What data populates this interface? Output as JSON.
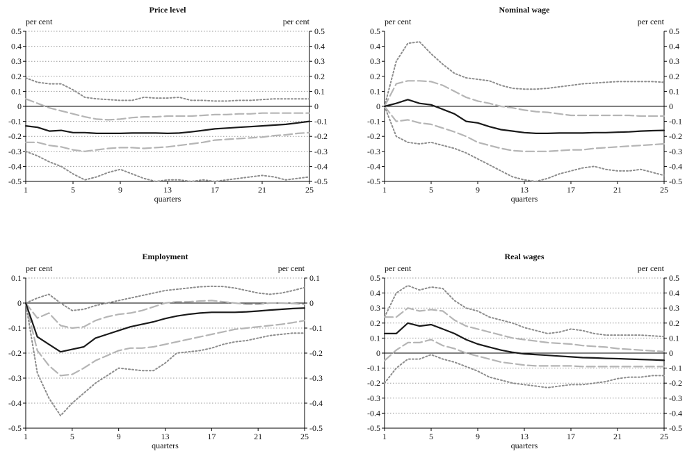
{
  "chart_data": [
    {
      "type": "line",
      "title": "Price level",
      "ylabel_left": "per cent",
      "ylabel_right": "per cent",
      "xlabel": "quarters",
      "xlim": [
        1,
        25
      ],
      "ylim": [
        -0.5,
        0.5
      ],
      "xticks": [
        1,
        5,
        9,
        13,
        17,
        21,
        25
      ],
      "yticks": [
        0.5,
        0.4,
        0.3,
        0.2,
        0.1,
        0,
        -0.1,
        -0.2,
        -0.3,
        -0.4,
        -0.5
      ],
      "ytick_labels": [
        "0.5",
        "0.4",
        "0.3",
        "0.2",
        "0.1",
        "0",
        "-0.1",
        "-0.2",
        "-0.3",
        "-0.4",
        "-0.5"
      ],
      "grid": true,
      "x": [
        1,
        2,
        3,
        4,
        5,
        6,
        7,
        8,
        9,
        10,
        11,
        12,
        13,
        14,
        15,
        16,
        17,
        18,
        19,
        20,
        21,
        22,
        23,
        24,
        25
      ],
      "series": [
        {
          "style": "outer-upper",
          "values": [
            0.19,
            0.16,
            0.15,
            0.15,
            0.11,
            0.06,
            0.05,
            0.045,
            0.04,
            0.04,
            0.06,
            0.055,
            0.055,
            0.06,
            0.04,
            0.04,
            0.035,
            0.035,
            0.04,
            0.04,
            0.045,
            0.05,
            0.05,
            0.05,
            0.05
          ]
        },
        {
          "style": "inner-upper",
          "values": [
            0.05,
            0.02,
            -0.01,
            -0.03,
            -0.05,
            -0.07,
            -0.085,
            -0.09,
            -0.085,
            -0.075,
            -0.07,
            -0.07,
            -0.065,
            -0.065,
            -0.065,
            -0.06,
            -0.055,
            -0.055,
            -0.05,
            -0.05,
            -0.045,
            -0.045,
            -0.045,
            -0.045,
            -0.045
          ]
        },
        {
          "style": "median",
          "values": [
            -0.13,
            -0.14,
            -0.165,
            -0.16,
            -0.175,
            -0.175,
            -0.18,
            -0.18,
            -0.18,
            -0.178,
            -0.178,
            -0.178,
            -0.18,
            -0.178,
            -0.17,
            -0.16,
            -0.15,
            -0.145,
            -0.14,
            -0.135,
            -0.13,
            -0.125,
            -0.12,
            -0.11,
            -0.1
          ]
        },
        {
          "style": "inner-lower",
          "values": [
            -0.24,
            -0.24,
            -0.26,
            -0.27,
            -0.29,
            -0.3,
            -0.29,
            -0.28,
            -0.275,
            -0.275,
            -0.28,
            -0.275,
            -0.27,
            -0.26,
            -0.25,
            -0.24,
            -0.225,
            -0.22,
            -0.215,
            -0.21,
            -0.205,
            -0.195,
            -0.19,
            -0.18,
            -0.175
          ]
        },
        {
          "style": "outer-lower",
          "values": [
            -0.3,
            -0.33,
            -0.37,
            -0.4,
            -0.45,
            -0.49,
            -0.47,
            -0.44,
            -0.42,
            -0.45,
            -0.48,
            -0.5,
            -0.49,
            -0.49,
            -0.5,
            -0.49,
            -0.5,
            -0.49,
            -0.48,
            -0.47,
            -0.46,
            -0.47,
            -0.49,
            -0.48,
            -0.47
          ]
        }
      ]
    },
    {
      "type": "line",
      "title": "Nominal wage",
      "ylabel_left": "per cent",
      "ylabel_right": "per cent",
      "xlabel": "quarters",
      "xlim": [
        1,
        25
      ],
      "ylim": [
        -0.5,
        0.5
      ],
      "xticks": [
        1,
        5,
        9,
        13,
        17,
        21,
        25
      ],
      "yticks": [
        0.5,
        0.4,
        0.3,
        0.2,
        0.1,
        0,
        -0.1,
        -0.2,
        -0.3,
        -0.4,
        -0.5
      ],
      "ytick_labels": [
        "0.5",
        "0.4",
        "0.3",
        "0.2",
        "0.1",
        "0",
        "-0.1",
        "-0.2",
        "-0.3",
        "-0.4",
        "-0.5"
      ],
      "grid": false,
      "x": [
        1,
        2,
        3,
        4,
        5,
        6,
        7,
        8,
        9,
        10,
        11,
        12,
        13,
        14,
        15,
        16,
        17,
        18,
        19,
        20,
        21,
        22,
        23,
        24,
        25
      ],
      "series": [
        {
          "style": "outer-upper",
          "values": [
            0,
            0.3,
            0.42,
            0.43,
            0.35,
            0.28,
            0.22,
            0.19,
            0.18,
            0.17,
            0.14,
            0.12,
            0.115,
            0.115,
            0.12,
            0.13,
            0.14,
            0.15,
            0.155,
            0.16,
            0.165,
            0.165,
            0.165,
            0.165,
            0.16
          ]
        },
        {
          "style": "inner-upper",
          "values": [
            0,
            0.15,
            0.17,
            0.17,
            0.165,
            0.14,
            0.1,
            0.06,
            0.035,
            0.02,
            0,
            -0.01,
            -0.025,
            -0.035,
            -0.04,
            -0.05,
            -0.06,
            -0.06,
            -0.06,
            -0.06,
            -0.06,
            -0.06,
            -0.065,
            -0.065,
            -0.065
          ]
        },
        {
          "style": "median",
          "values": [
            0,
            0.02,
            0.045,
            0.02,
            0.01,
            -0.02,
            -0.05,
            -0.1,
            -0.11,
            -0.135,
            -0.155,
            -0.165,
            -0.175,
            -0.18,
            -0.18,
            -0.178,
            -0.178,
            -0.178,
            -0.175,
            -0.175,
            -0.172,
            -0.17,
            -0.165,
            -0.162,
            -0.16
          ]
        },
        {
          "style": "inner-lower",
          "values": [
            0,
            -0.1,
            -0.09,
            -0.11,
            -0.12,
            -0.145,
            -0.17,
            -0.2,
            -0.24,
            -0.26,
            -0.28,
            -0.295,
            -0.3,
            -0.3,
            -0.3,
            -0.295,
            -0.29,
            -0.29,
            -0.28,
            -0.275,
            -0.27,
            -0.265,
            -0.26,
            -0.255,
            -0.25
          ]
        },
        {
          "style": "outer-lower",
          "values": [
            0,
            -0.2,
            -0.24,
            -0.25,
            -0.24,
            -0.26,
            -0.28,
            -0.31,
            -0.35,
            -0.39,
            -0.43,
            -0.47,
            -0.49,
            -0.5,
            -0.48,
            -0.45,
            -0.43,
            -0.41,
            -0.4,
            -0.42,
            -0.43,
            -0.43,
            -0.42,
            -0.44,
            -0.46
          ]
        }
      ]
    },
    {
      "type": "line",
      "title": "Employment",
      "ylabel_left": "per cent",
      "ylabel_right": "per cent",
      "xlabel": "quarters",
      "xlim": [
        1,
        25
      ],
      "ylim": [
        -0.5,
        0.1
      ],
      "xticks": [
        1,
        5,
        9,
        13,
        17,
        21,
        25
      ],
      "yticks": [
        0.1,
        0,
        -0.1,
        -0.2,
        -0.3,
        -0.4,
        -0.5
      ],
      "ytick_labels": [
        "0.1",
        "0",
        "-0.1",
        "-0.2",
        "-0.3",
        "-0.4",
        "-0.5"
      ],
      "grid": true,
      "x": [
        1,
        2,
        3,
        4,
        5,
        6,
        7,
        8,
        9,
        10,
        11,
        12,
        13,
        14,
        15,
        16,
        17,
        18,
        19,
        20,
        21,
        22,
        23,
        24,
        25
      ],
      "series": [
        {
          "style": "outer-upper",
          "values": [
            0,
            0.02,
            0.035,
            0,
            -0.03,
            -0.025,
            -0.01,
            0,
            0.01,
            0.02,
            0.03,
            0.04,
            0.05,
            0.055,
            0.06,
            0.065,
            0.067,
            0.066,
            0.06,
            0.05,
            0.04,
            0.035,
            0.04,
            0.05,
            0.062
          ]
        },
        {
          "style": "inner-upper",
          "values": [
            0,
            -0.06,
            -0.04,
            -0.09,
            -0.1,
            -0.095,
            -0.07,
            -0.055,
            -0.045,
            -0.04,
            -0.03,
            -0.015,
            0,
            0.005,
            0.005,
            0.008,
            0.01,
            0.005,
            0,
            -0.005,
            -0.005,
            0,
            0,
            -0.002,
            -0.005
          ]
        },
        {
          "style": "median",
          "values": [
            0,
            -0.135,
            -0.165,
            -0.195,
            -0.185,
            -0.175,
            -0.14,
            -0.125,
            -0.11,
            -0.095,
            -0.085,
            -0.075,
            -0.062,
            -0.052,
            -0.045,
            -0.04,
            -0.037,
            -0.037,
            -0.037,
            -0.035,
            -0.032,
            -0.028,
            -0.025,
            -0.022,
            -0.02
          ]
        },
        {
          "style": "inner-lower",
          "values": [
            0,
            -0.19,
            -0.25,
            -0.29,
            -0.285,
            -0.26,
            -0.23,
            -0.21,
            -0.19,
            -0.18,
            -0.18,
            -0.175,
            -0.165,
            -0.155,
            -0.145,
            -0.135,
            -0.125,
            -0.115,
            -0.105,
            -0.1,
            -0.095,
            -0.09,
            -0.085,
            -0.078,
            -0.07
          ]
        },
        {
          "style": "outer-lower",
          "values": [
            0,
            -0.28,
            -0.38,
            -0.45,
            -0.4,
            -0.36,
            -0.32,
            -0.29,
            -0.26,
            -0.265,
            -0.27,
            -0.27,
            -0.24,
            -0.2,
            -0.195,
            -0.19,
            -0.18,
            -0.165,
            -0.155,
            -0.15,
            -0.14,
            -0.13,
            -0.125,
            -0.12,
            -0.12
          ]
        }
      ]
    },
    {
      "type": "line",
      "title": "Real wages",
      "ylabel_left": "per cent",
      "ylabel_right": "per cent",
      "xlabel": "quarters",
      "xlim": [
        1,
        25
      ],
      "ylim": [
        -0.5,
        0.5
      ],
      "xticks": [
        1,
        5,
        9,
        13,
        17,
        21,
        25
      ],
      "yticks": [
        0.5,
        0.4,
        0.3,
        0.2,
        0.1,
        0,
        -0.1,
        -0.2,
        -0.3,
        -0.4,
        -0.5
      ],
      "ytick_labels": [
        "0.5",
        "0.4",
        "0.3",
        "0.2",
        "0.1",
        "0",
        "-0.1",
        "-0.2",
        "-0.3",
        "-0.4",
        "-0.5"
      ],
      "grid": true,
      "x": [
        1,
        2,
        3,
        4,
        5,
        6,
        7,
        8,
        9,
        10,
        11,
        12,
        13,
        14,
        15,
        16,
        17,
        18,
        19,
        20,
        21,
        22,
        23,
        24,
        25
      ],
      "series": [
        {
          "style": "outer-upper",
          "values": [
            0.24,
            0.4,
            0.45,
            0.42,
            0.44,
            0.43,
            0.35,
            0.3,
            0.28,
            0.24,
            0.22,
            0.2,
            0.17,
            0.15,
            0.13,
            0.14,
            0.16,
            0.15,
            0.13,
            0.12,
            0.12,
            0.12,
            0.12,
            0.115,
            0.11
          ]
        },
        {
          "style": "inner-upper",
          "values": [
            0.24,
            0.24,
            0.3,
            0.28,
            0.29,
            0.28,
            0.22,
            0.18,
            0.16,
            0.14,
            0.12,
            0.1,
            0.09,
            0.08,
            0.07,
            0.065,
            0.06,
            0.05,
            0.045,
            0.04,
            0.03,
            0.025,
            0.02,
            0.015,
            0.01
          ]
        },
        {
          "style": "median",
          "values": [
            0.13,
            0.13,
            0.2,
            0.18,
            0.19,
            0.16,
            0.13,
            0.09,
            0.06,
            0.04,
            0.02,
            0.005,
            -0.005,
            -0.01,
            -0.015,
            -0.02,
            -0.025,
            -0.03,
            -0.032,
            -0.035,
            -0.037,
            -0.04,
            -0.042,
            -0.045,
            -0.048
          ]
        },
        {
          "style": "inner-lower",
          "values": [
            -0.05,
            0.02,
            0.07,
            0.07,
            0.09,
            0.05,
            0.03,
            0,
            -0.02,
            -0.04,
            -0.06,
            -0.07,
            -0.08,
            -0.085,
            -0.085,
            -0.085,
            -0.085,
            -0.09,
            -0.09,
            -0.09,
            -0.09,
            -0.09,
            -0.09,
            -0.09,
            -0.09
          ]
        },
        {
          "style": "outer-lower",
          "values": [
            -0.2,
            -0.1,
            -0.04,
            -0.04,
            -0.01,
            -0.04,
            -0.06,
            -0.09,
            -0.12,
            -0.16,
            -0.18,
            -0.2,
            -0.21,
            -0.22,
            -0.23,
            -0.22,
            -0.21,
            -0.21,
            -0.2,
            -0.19,
            -0.17,
            -0.16,
            -0.16,
            -0.15,
            -0.15
          ]
        }
      ]
    }
  ],
  "styles": {
    "median": {
      "color": "#1a1a1a",
      "dash": "solid",
      "width": 2.2
    },
    "inner": {
      "color": "#b5b5b5",
      "dash": "long-dash",
      "width": 2.2
    },
    "outer": {
      "color": "#8c8c8c",
      "dash": "dotted",
      "width": 2
    },
    "grid_color": "#999999",
    "axis_color": "#000000"
  }
}
